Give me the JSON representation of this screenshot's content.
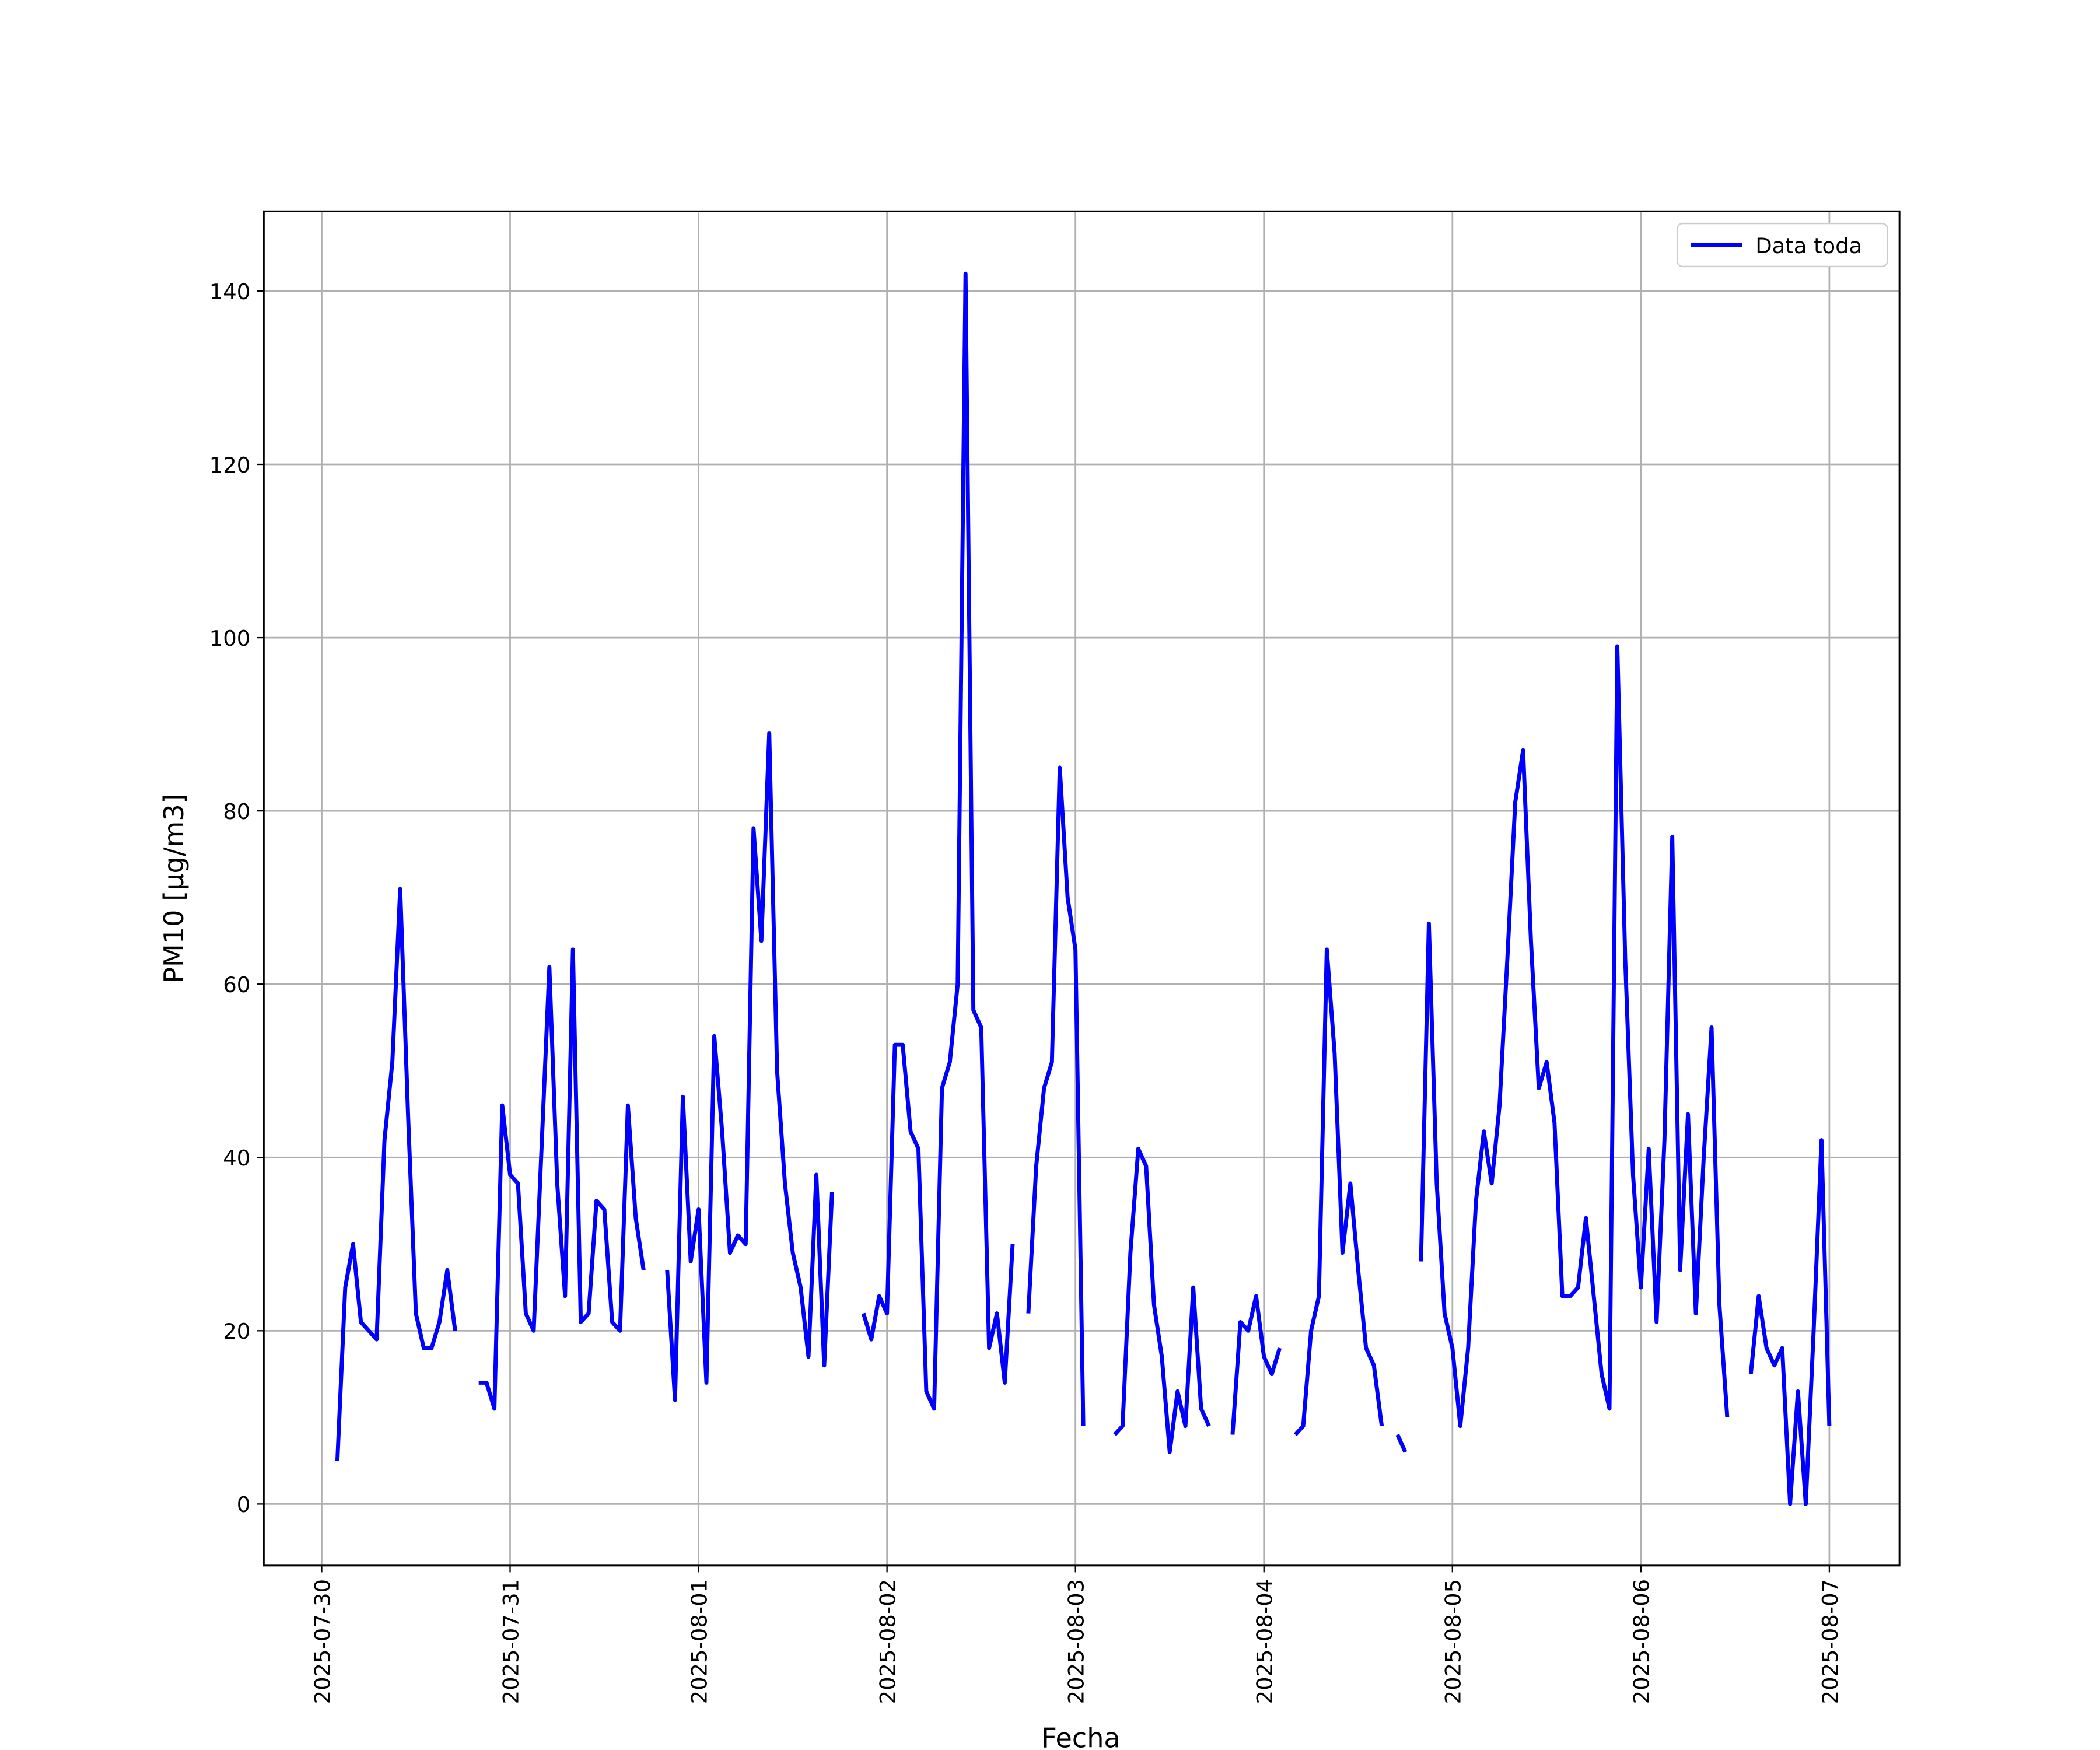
{
  "chart_data": {
    "type": "line",
    "xlabel": "Fecha",
    "ylabel": "PM10 [μg/m3]",
    "grid": true,
    "legend": "upper right",
    "xlim": [
      "2025-07-29 16:38",
      "2025-08-07 08:56"
    ],
    "xticks": [
      "2025-07-30",
      "2025-07-31",
      "2025-08-01",
      "2025-08-02",
      "2025-08-03",
      "2025-08-04",
      "2025-08-05",
      "2025-08-06",
      "2025-08-07"
    ],
    "ylim": [
      -7.1,
      149.2
    ],
    "yticks": [
      0,
      20,
      40,
      60,
      80,
      100,
      120,
      140
    ],
    "x": [
      "2025-07-30 02:00",
      "2025-07-30 03:00",
      "2025-07-30 04:00",
      "2025-07-30 05:00",
      "2025-07-30 06:00",
      "2025-07-30 07:00",
      "2025-07-30 08:00",
      "2025-07-30 09:00",
      "2025-07-30 10:00",
      "2025-07-30 11:00",
      "2025-07-30 12:00",
      "2025-07-30 13:00",
      "2025-07-30 14:00",
      "2025-07-30 15:00",
      "2025-07-30 16:00",
      "2025-07-30 17:00",
      "2025-07-30 18:00",
      "2025-07-30 19:00",
      "2025-07-30 20:00",
      "2025-07-30 21:00",
      "2025-07-30 22:00",
      "2025-07-30 23:00",
      "2025-07-31 00:00",
      "2025-07-31 01:00",
      "2025-07-31 02:00",
      "2025-07-31 03:00",
      "2025-07-31 04:00",
      "2025-07-31 05:00",
      "2025-07-31 06:00",
      "2025-07-31 07:00",
      "2025-07-31 08:00",
      "2025-07-31 09:00",
      "2025-07-31 10:00",
      "2025-07-31 11:00",
      "2025-07-31 12:00",
      "2025-07-31 13:00",
      "2025-07-31 14:00",
      "2025-07-31 15:00",
      "2025-07-31 16:00",
      "2025-07-31 17:00",
      "2025-07-31 18:00",
      "2025-07-31 19:00",
      "2025-07-31 20:00",
      "2025-07-31 21:00",
      "2025-07-31 22:00",
      "2025-07-31 23:00",
      "2025-08-01 00:00",
      "2025-08-01 01:00",
      "2025-08-01 02:00",
      "2025-08-01 03:00",
      "2025-08-01 04:00",
      "2025-08-01 05:00",
      "2025-08-01 06:00",
      "2025-08-01 07:00",
      "2025-08-01 08:00",
      "2025-08-01 09:00",
      "2025-08-01 10:00",
      "2025-08-01 11:00",
      "2025-08-01 12:00",
      "2025-08-01 13:00",
      "2025-08-01 14:00",
      "2025-08-01 15:00",
      "2025-08-01 16:00",
      "2025-08-01 17:00",
      "2025-08-01 18:00",
      "2025-08-01 19:00",
      "2025-08-01 20:00",
      "2025-08-01 21:00",
      "2025-08-01 22:00",
      "2025-08-01 23:00",
      "2025-08-02 00:00",
      "2025-08-02 01:00",
      "2025-08-02 02:00",
      "2025-08-02 03:00",
      "2025-08-02 04:00",
      "2025-08-02 05:00",
      "2025-08-02 06:00",
      "2025-08-02 07:00",
      "2025-08-02 08:00",
      "2025-08-02 09:00",
      "2025-08-02 10:00",
      "2025-08-02 11:00",
      "2025-08-02 12:00",
      "2025-08-02 13:00",
      "2025-08-02 14:00",
      "2025-08-02 15:00",
      "2025-08-02 16:00",
      "2025-08-02 17:00",
      "2025-08-02 18:00",
      "2025-08-02 19:00",
      "2025-08-02 20:00",
      "2025-08-02 21:00",
      "2025-08-02 22:00",
      "2025-08-02 23:00",
      "2025-08-03 00:00",
      "2025-08-03 01:00",
      "2025-08-03 02:00",
      "2025-08-03 03:00",
      "2025-08-03 04:00",
      "2025-08-03 05:00",
      "2025-08-03 06:00",
      "2025-08-03 07:00",
      "2025-08-03 08:00",
      "2025-08-03 09:00",
      "2025-08-03 10:00",
      "2025-08-03 11:00",
      "2025-08-03 12:00",
      "2025-08-03 13:00",
      "2025-08-03 14:00",
      "2025-08-03 15:00",
      "2025-08-03 16:00",
      "2025-08-03 17:00",
      "2025-08-03 18:00",
      "2025-08-03 19:00",
      "2025-08-03 20:00",
      "2025-08-03 21:00",
      "2025-08-03 22:00",
      "2025-08-03 23:00",
      "2025-08-04 00:00",
      "2025-08-04 01:00",
      "2025-08-04 02:00",
      "2025-08-04 03:00",
      "2025-08-04 04:00",
      "2025-08-04 05:00",
      "2025-08-04 06:00",
      "2025-08-04 07:00",
      "2025-08-04 08:00",
      "2025-08-04 09:00",
      "2025-08-04 10:00",
      "2025-08-04 11:00",
      "2025-08-04 12:00",
      "2025-08-04 13:00",
      "2025-08-04 14:00",
      "2025-08-04 15:00",
      "2025-08-04 16:00",
      "2025-08-04 17:00",
      "2025-08-04 18:00",
      "2025-08-04 19:00",
      "2025-08-04 20:00",
      "2025-08-04 21:00",
      "2025-08-04 22:00",
      "2025-08-04 23:00",
      "2025-08-05 00:00",
      "2025-08-05 01:00",
      "2025-08-05 02:00",
      "2025-08-05 03:00",
      "2025-08-05 04:00",
      "2025-08-05 05:00",
      "2025-08-05 06:00",
      "2025-08-05 07:00",
      "2025-08-05 08:00",
      "2025-08-05 09:00",
      "2025-08-05 10:00",
      "2025-08-05 11:00",
      "2025-08-05 12:00",
      "2025-08-05 13:00",
      "2025-08-05 14:00",
      "2025-08-05 15:00",
      "2025-08-05 16:00",
      "2025-08-05 17:00",
      "2025-08-05 18:00",
      "2025-08-05 19:00",
      "2025-08-05 20:00",
      "2025-08-05 21:00",
      "2025-08-05 22:00",
      "2025-08-05 23:00",
      "2025-08-06 00:00",
      "2025-08-06 01:00",
      "2025-08-06 02:00",
      "2025-08-06 03:00",
      "2025-08-06 04:00",
      "2025-08-06 05:00",
      "2025-08-06 06:00",
      "2025-08-06 07:00",
      "2025-08-06 08:00",
      "2025-08-06 09:00",
      "2025-08-06 10:00",
      "2025-08-06 11:00",
      "2025-08-06 12:00",
      "2025-08-06 13:00",
      "2025-08-06 14:00",
      "2025-08-06 15:00",
      "2025-08-06 16:00",
      "2025-08-06 17:00",
      "2025-08-06 18:00",
      "2025-08-06 19:00",
      "2025-08-06 20:00",
      "2025-08-06 21:00",
      "2025-08-06 22:00",
      "2025-08-06 23:00",
      "2025-08-07 00:00"
    ],
    "series": [
      {
        "name": "Data toda",
        "color": "#0000ff",
        "values": [
          5,
          25,
          30,
          21,
          20,
          19,
          42,
          51,
          71,
          45,
          22,
          18,
          18,
          21,
          27,
          20,
          null,
          null,
          14,
          14,
          11,
          46,
          38,
          37,
          22,
          20,
          41,
          62,
          37,
          24,
          64,
          21,
          22,
          35,
          34,
          21,
          20,
          46,
          33,
          27,
          null,
          null,
          27,
          12,
          47,
          28,
          34,
          14,
          54,
          43,
          29,
          31,
          30,
          78,
          65,
          89,
          50,
          37,
          29,
          25,
          17,
          38,
          16,
          36,
          null,
          null,
          null,
          22,
          19,
          24,
          22,
          53,
          53,
          43,
          41,
          13,
          11,
          48,
          51,
          60,
          142,
          57,
          55,
          18,
          22,
          14,
          30,
          null,
          22,
          39,
          48,
          51,
          85,
          70,
          64,
          9,
          null,
          null,
          null,
          8,
          9,
          29,
          41,
          39,
          23,
          17,
          6,
          13,
          9,
          25,
          11,
          9,
          null,
          null,
          8,
          21,
          20,
          24,
          17,
          15,
          18,
          null,
          8,
          9,
          20,
          24,
          64,
          52,
          29,
          37,
          27,
          18,
          16,
          9,
          null,
          8,
          6,
          null,
          28,
          67,
          37,
          22,
          18,
          9,
          18,
          35,
          43,
          37,
          46,
          63,
          81,
          87,
          65,
          48,
          51,
          44,
          24,
          24,
          25,
          33,
          24,
          15,
          11,
          99,
          63,
          38,
          25,
          41,
          21,
          42,
          77,
          27,
          45,
          22,
          40,
          55,
          23,
          10,
          null,
          null,
          15,
          24,
          18,
          16,
          18,
          0,
          13,
          0,
          20,
          42,
          9
        ]
      }
    ]
  }
}
